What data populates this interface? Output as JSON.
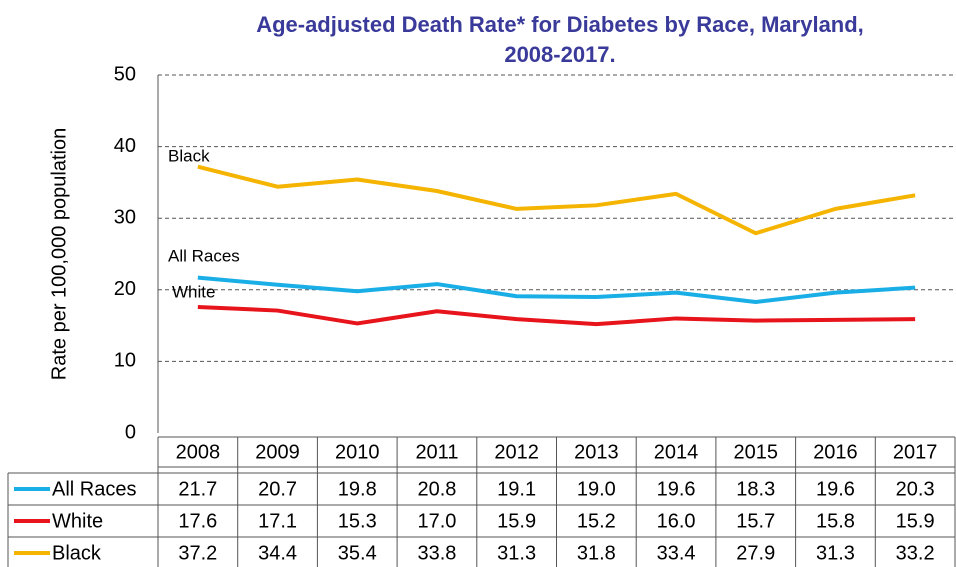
{
  "chart_data": {
    "type": "line",
    "title": [
      "Age-adjusted Death Rate* for Diabetes by Race, Maryland,",
      "2008-2017."
    ],
    "y_label": "Rate per 100,000 population",
    "categories": [
      "2008",
      "2009",
      "2010",
      "2011",
      "2012",
      "2013",
      "2014",
      "2015",
      "2016",
      "2017"
    ],
    "series": [
      {
        "name": "All Races",
        "color": "#1aaee6",
        "values": [
          21.7,
          20.7,
          19.8,
          20.8,
          19.1,
          19.0,
          19.6,
          18.3,
          19.6,
          20.3
        ],
        "value_labels": [
          "21.7",
          "20.7",
          "19.8",
          "20.8",
          "19.1",
          "19.0",
          "19.6",
          "18.3",
          "19.6",
          "20.3"
        ]
      },
      {
        "name": "White",
        "color": "#e8141b",
        "values": [
          17.6,
          17.1,
          15.3,
          17.0,
          15.9,
          15.2,
          16.0,
          15.7,
          15.8,
          15.9
        ],
        "value_labels": [
          "17.6",
          "17.1",
          "15.3",
          "17.0",
          "15.9",
          "15.2",
          "16.0",
          "15.7",
          "15.8",
          "15.9"
        ]
      },
      {
        "name": "Black",
        "color": "#f5b400",
        "values": [
          37.2,
          34.4,
          35.4,
          33.8,
          31.3,
          31.8,
          33.4,
          27.9,
          31.3,
          33.2
        ],
        "value_labels": [
          "37.2",
          "34.4",
          "35.4",
          "33.8",
          "31.3",
          "31.8",
          "33.4",
          "27.9",
          "31.3",
          "33.2"
        ]
      }
    ],
    "ylim": [
      0,
      50
    ],
    "yticks": [
      0,
      10,
      20,
      30,
      40,
      50
    ],
    "grid": true
  }
}
